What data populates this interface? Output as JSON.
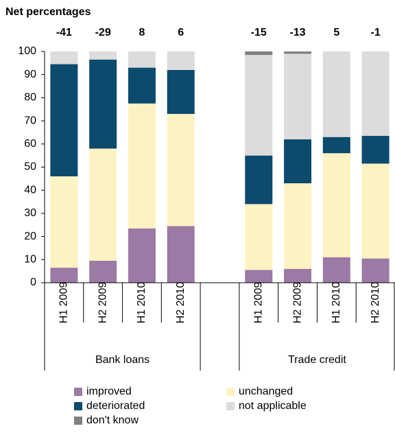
{
  "chart_data": {
    "type": "stacked-bar",
    "title": "Net percentages",
    "categories": [
      "H1 2009",
      "H2 2009",
      "H1 2010",
      "H2 2010",
      null,
      "H1 2009",
      "H2 2009",
      "H1 2010",
      "H2 2010"
    ],
    "groups": [
      "Bank loans",
      "Trade credit"
    ],
    "net_values": [
      -41,
      -29,
      8,
      6,
      null,
      -15,
      -13,
      5,
      -1
    ],
    "series": [
      {
        "name": "improved",
        "color": "#9b7aa6",
        "values": [
          6.5,
          9.5,
          23.5,
          24.5,
          null,
          5.5,
          6,
          11,
          10.5
        ]
      },
      {
        "name": "unchanged",
        "color": "#fdf3c2",
        "values": [
          39.5,
          48.5,
          54,
          48.5,
          null,
          28.5,
          37,
          45,
          41
        ]
      },
      {
        "name": "deteriorated",
        "color": "#0c4a6e",
        "values": [
          48.5,
          38.5,
          15.5,
          19,
          null,
          21,
          19,
          7,
          12
        ]
      },
      {
        "name": "not applicable",
        "color": "#dcdcdc",
        "values": [
          5.5,
          3.5,
          7,
          8,
          null,
          43.5,
          37,
          37,
          36.5
        ]
      },
      {
        "name": "don't know",
        "color": "#808080",
        "values": [
          0,
          0,
          0,
          0,
          null,
          1.5,
          1,
          0,
          0
        ]
      }
    ],
    "ylim": [
      0,
      100
    ],
    "yticks": [
      0,
      10,
      20,
      30,
      40,
      50,
      60,
      70,
      80,
      90,
      100
    ]
  }
}
